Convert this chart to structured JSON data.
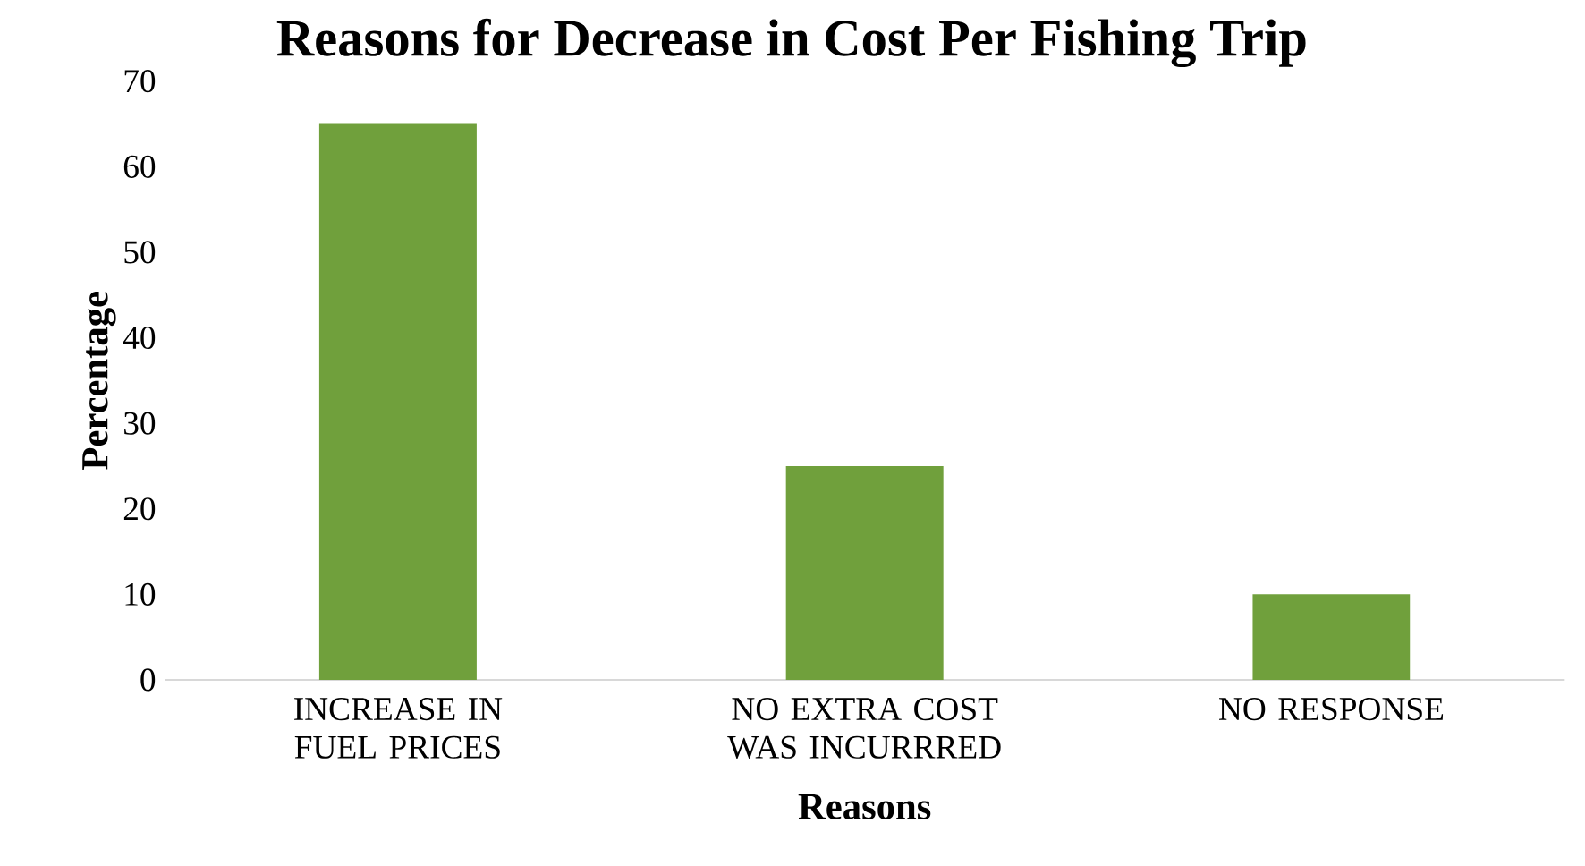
{
  "chart_data": {
    "type": "bar",
    "title": "Reasons for Decrease in Cost Per Fishing Trip",
    "xlabel": "Reasons",
    "ylabel": "Percentage",
    "categories": [
      "INCREASE IN FUEL PRICES",
      "NO EXTRA COST WAS INCURRRED",
      "NO RESPONSE"
    ],
    "values": [
      65,
      25,
      10
    ],
    "color": "#70a03c",
    "ylim": [
      0,
      70
    ],
    "yticks": [
      0,
      10,
      20,
      30,
      40,
      50,
      60,
      70
    ]
  }
}
